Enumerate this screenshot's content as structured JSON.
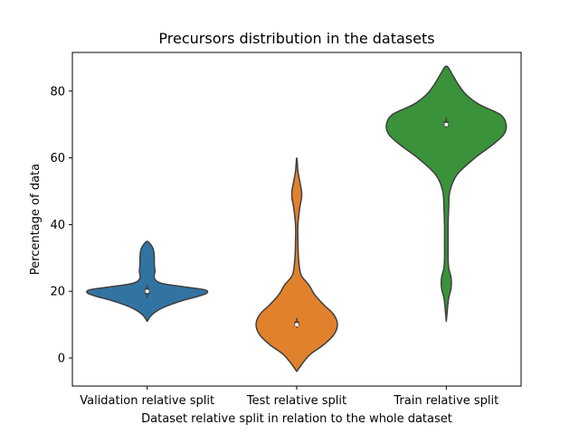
{
  "chart_data": {
    "type": "violin",
    "title": "Precursors distribution in the datasets",
    "xlabel": "Dataset relative split in relation to the whole dataset",
    "ylabel": "Percentage of data",
    "ylim": [
      -8.4,
      91.6
    ],
    "yticks": [
      0,
      20,
      40,
      60,
      80
    ],
    "grid": false,
    "legend": "none",
    "categories": [
      "Validation relative split",
      "Test relative split",
      "Train relative split"
    ],
    "violins": [
      {
        "category": "Validation relative split",
        "color": "#3274a1",
        "quartiles": [
          19.0,
          20.0,
          21.0
        ],
        "median": 20.0,
        "whisker": [
          18.0,
          22.0
        ],
        "density": [
          [
            11,
            0.0
          ],
          [
            13,
            0.08
          ],
          [
            15,
            0.25
          ],
          [
            17,
            0.55
          ],
          [
            18.5,
            0.85
          ],
          [
            19.5,
            1.0
          ],
          [
            20.5,
            0.95
          ],
          [
            21.5,
            0.55
          ],
          [
            22.5,
            0.22
          ],
          [
            24,
            0.12
          ],
          [
            26,
            0.13
          ],
          [
            28,
            0.12
          ],
          [
            30,
            0.12
          ],
          [
            32,
            0.11
          ],
          [
            33.5,
            0.08
          ],
          [
            35,
            0.0
          ]
        ]
      },
      {
        "category": "Test relative split",
        "color": "#e1812c",
        "quartiles": [
          9.5,
          10.0,
          11.0
        ],
        "median": 10.0,
        "whisker": [
          9.0,
          12.0
        ],
        "density": [
          [
            -4,
            0.0
          ],
          [
            -2,
            0.08
          ],
          [
            1,
            0.22
          ],
          [
            4,
            0.45
          ],
          [
            7,
            0.62
          ],
          [
            10,
            0.68
          ],
          [
            13,
            0.62
          ],
          [
            16,
            0.45
          ],
          [
            19,
            0.3
          ],
          [
            22,
            0.2
          ],
          [
            25,
            0.07
          ],
          [
            30,
            0.03
          ],
          [
            35,
            0.02
          ],
          [
            40,
            0.02
          ],
          [
            45,
            0.05
          ],
          [
            48,
            0.08
          ],
          [
            50,
            0.08
          ],
          [
            53,
            0.05
          ],
          [
            56,
            0.02
          ],
          [
            60,
            0.0
          ]
        ]
      },
      {
        "category": "Train relative split",
        "color": "#3a923a",
        "quartiles": [
          69.5,
          70.0,
          71.0
        ],
        "median": 70.0,
        "whisker": [
          69.0,
          72.0
        ],
        "density": [
          [
            11,
            0.0
          ],
          [
            15,
            0.02
          ],
          [
            18,
            0.04
          ],
          [
            21,
            0.08
          ],
          [
            24,
            0.08
          ],
          [
            27,
            0.04
          ],
          [
            30,
            0.03
          ],
          [
            35,
            0.03
          ],
          [
            40,
            0.03
          ],
          [
            45,
            0.04
          ],
          [
            50,
            0.06
          ],
          [
            55,
            0.18
          ],
          [
            60,
            0.48
          ],
          [
            64,
            0.78
          ],
          [
            67,
            0.96
          ],
          [
            70,
            1.0
          ],
          [
            73,
            0.9
          ],
          [
            76,
            0.55
          ],
          [
            79,
            0.33
          ],
          [
            82,
            0.2
          ],
          [
            85,
            0.1
          ],
          [
            87.5,
            0.0
          ]
        ]
      }
    ]
  }
}
